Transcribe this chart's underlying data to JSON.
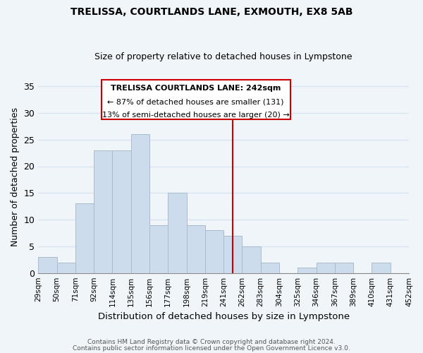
{
  "title": "TRELISSA, COURTLANDS LANE, EXMOUTH, EX8 5AB",
  "subtitle": "Size of property relative to detached houses in Lympstone",
  "xlabel": "Distribution of detached houses by size in Lympstone",
  "ylabel": "Number of detached properties",
  "bar_color": "#ccdcec",
  "bar_edge_color": "#aabccc",
  "bin_labels": [
    "29sqm",
    "50sqm",
    "71sqm",
    "92sqm",
    "114sqm",
    "135sqm",
    "156sqm",
    "177sqm",
    "198sqm",
    "219sqm",
    "241sqm",
    "262sqm",
    "283sqm",
    "304sqm",
    "325sqm",
    "346sqm",
    "367sqm",
    "389sqm",
    "410sqm",
    "431sqm",
    "452sqm"
  ],
  "bar_heights": [
    3,
    2,
    13,
    23,
    23,
    26,
    9,
    15,
    9,
    8,
    7,
    5,
    2,
    0,
    1,
    2,
    2,
    0,
    2,
    0
  ],
  "ylim": [
    0,
    36
  ],
  "yticks": [
    0,
    5,
    10,
    15,
    20,
    25,
    30,
    35
  ],
  "vline_color": "#cc0000",
  "annotation_title": "TRELISSA COURTLANDS LANE: 242sqm",
  "annotation_line1": "← 87% of detached houses are smaller (131)",
  "annotation_line2": "13% of semi-detached houses are larger (20) →",
  "annotation_box_edge": "#cc0000",
  "footer_line1": "Contains HM Land Registry data © Crown copyright and database right 2024.",
  "footer_line2": "Contains public sector information licensed under the Open Government Licence v3.0.",
  "background_color": "#f0f5fa",
  "grid_color": "#d8e4f0"
}
